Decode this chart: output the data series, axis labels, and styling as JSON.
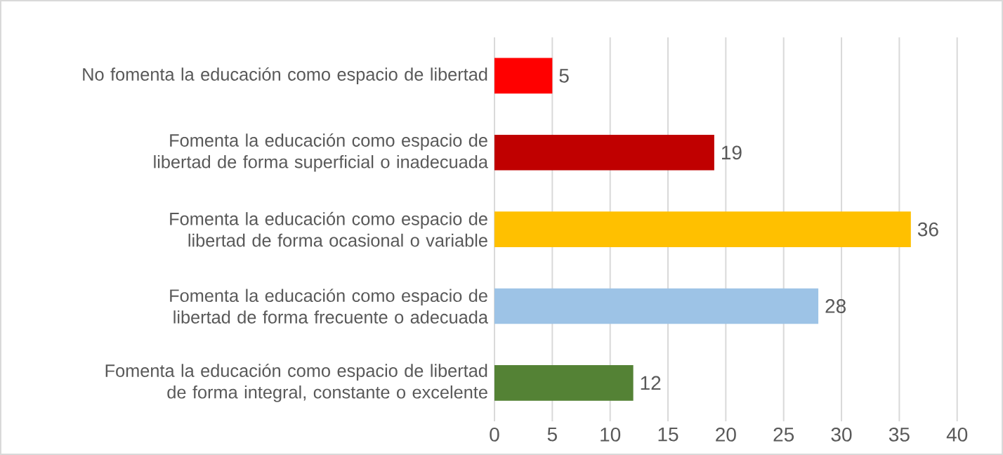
{
  "chart_data": {
    "type": "bar",
    "orientation": "horizontal",
    "categories": [
      "No fomenta la educación como espacio de libertad",
      "Fomenta la educación como espacio de libertad de forma superficial o inadecuada",
      "Fomenta la educación como espacio de libertad de forma ocasional o variable",
      "Fomenta la educación como espacio de libertad de forma frecuente o adecuada",
      "Fomenta la educación como espacio de libertad de forma integral, constante o excelente"
    ],
    "values": [
      5,
      19,
      36,
      28,
      12
    ],
    "colors": [
      "#ff0000",
      "#c00000",
      "#ffc000",
      "#9dc3e6",
      "#548235"
    ],
    "xlim": [
      0,
      40
    ],
    "xticks": [
      0,
      5,
      10,
      15,
      20,
      25,
      30,
      35,
      40
    ],
    "grid": "x",
    "data_labels": true
  }
}
